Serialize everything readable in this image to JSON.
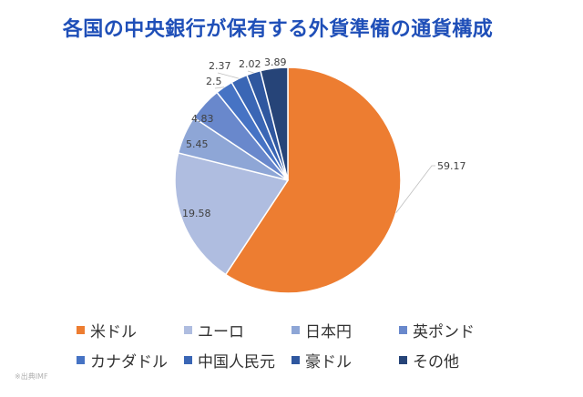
{
  "chart_data": {
    "type": "pie",
    "title": "各国の中央銀行が保有する外貨準備の通貨構成",
    "source": "※出典IMF",
    "start_angle_deg": 0,
    "direction": "clockwise",
    "legend_position": "bottom",
    "slices": [
      {
        "label": "米ドル",
        "value": 59.17,
        "value_label": "59.17",
        "color": "#ed7d31"
      },
      {
        "label": "ユーロ",
        "value": 19.58,
        "value_label": "19.58",
        "color": "#afbde0"
      },
      {
        "label": "日本円",
        "value": 5.45,
        "value_label": "5.45",
        "color": "#8ea6d6"
      },
      {
        "label": "英ポンド",
        "value": 4.83,
        "value_label": "4.83",
        "color": "#6988cc"
      },
      {
        "label": "カナダドル",
        "value": 2.5,
        "value_label": "2.5",
        "color": "#4673c4"
      },
      {
        "label": "中国人民元",
        "value": 2.37,
        "value_label": "2.37",
        "color": "#3a66b5"
      },
      {
        "label": "豪ドル",
        "value": 2.02,
        "value_label": "2.02",
        "color": "#2f579f"
      },
      {
        "label": "その他",
        "value": 3.89,
        "value_label": "3.89",
        "color": "#264478"
      }
    ]
  }
}
